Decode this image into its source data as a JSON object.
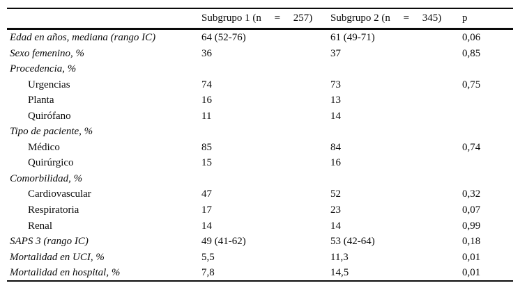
{
  "table": {
    "header": {
      "label": "",
      "subgroup1": "Subgrupo 1 (n     =     257)",
      "subgroup2": "Subgrupo 2 (n     =     345)",
      "p": "p"
    },
    "rows": [
      {
        "type": "category",
        "label": "Edad en años, mediana (rango IC)",
        "c1": "64 (52-76)",
        "c2": "61 (49-71)",
        "p": "0,06"
      },
      {
        "type": "category",
        "label": "Sexo femenino, %",
        "c1": "36",
        "c2": "37",
        "p": "0,85"
      },
      {
        "type": "category",
        "label": "Procedencia, %",
        "c1": "",
        "c2": "",
        "p": ""
      },
      {
        "type": "sub",
        "label": "Urgencias",
        "c1": "74",
        "c2": "73",
        "p": "0,75"
      },
      {
        "type": "sub",
        "label": "Planta",
        "c1": "16",
        "c2": "13",
        "p": ""
      },
      {
        "type": "sub",
        "label": "Quirófano",
        "c1": "11",
        "c2": "14",
        "p": ""
      },
      {
        "type": "category",
        "label": "Tipo de paciente, %",
        "c1": "",
        "c2": "",
        "p": ""
      },
      {
        "type": "sub",
        "label": "Médico",
        "c1": "85",
        "c2": "84",
        "p": "0,74"
      },
      {
        "type": "sub",
        "label": "Quirúrgico",
        "c1": "15",
        "c2": "16",
        "p": ""
      },
      {
        "type": "category",
        "label": "Comorbilidad, %",
        "c1": "",
        "c2": "",
        "p": ""
      },
      {
        "type": "sub",
        "label": "Cardiovascular",
        "c1": "47",
        "c2": "52",
        "p": "0,32"
      },
      {
        "type": "sub",
        "label": "Respiratoria",
        "c1": "17",
        "c2": "23",
        "p": "0,07"
      },
      {
        "type": "sub",
        "label": "Renal",
        "c1": "14",
        "c2": "14",
        "p": "0,99"
      },
      {
        "type": "category",
        "label": "SAPS 3 (rango IC)",
        "c1": "49 (41-62)",
        "c2": "53 (42-64)",
        "p": "0,18"
      },
      {
        "type": "category",
        "label": "Mortalidad en UCI, %",
        "c1": "5,5",
        "c2": "11,3",
        "p": "0,01"
      },
      {
        "type": "category",
        "label": "Mortalidad en hospital, %",
        "c1": "7,8",
        "c2": "14,5",
        "p": "0,01"
      }
    ]
  },
  "colors": {
    "background": "#ffffff",
    "text": "#0a0a0a",
    "rule": "#0a0a0a"
  }
}
